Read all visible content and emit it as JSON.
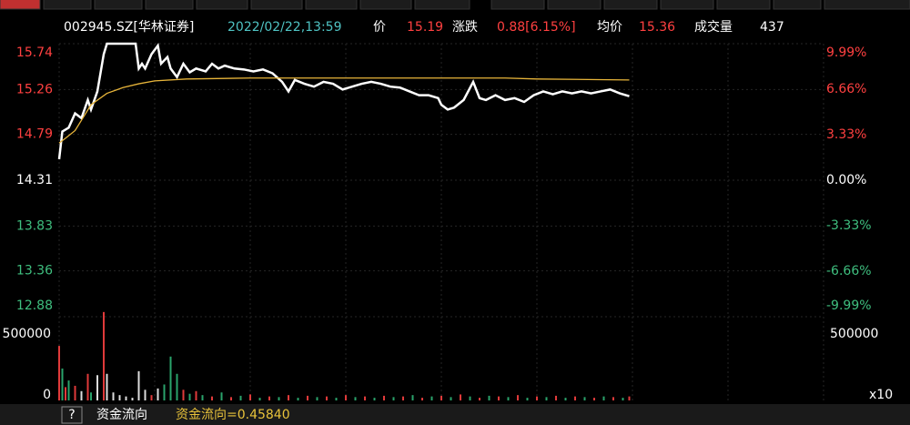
{
  "chart_data": {
    "type": "line",
    "header": {
      "code": "002945.SZ[华林证券]",
      "time": "2022/02/22,13:59",
      "price_label": "价",
      "price": "15.19",
      "change_label": "涨跌",
      "change": "0.88[6.15%]",
      "avg_label": "均价",
      "avg": "15.36",
      "vol_label": "成交量",
      "vol": "437"
    },
    "xlim": [
      0,
      240
    ],
    "xticks": [
      0,
      30,
      60,
      90,
      120,
      150,
      180,
      210,
      240
    ],
    "ylim": [
      12.88,
      15.74
    ],
    "yticks": [
      15.74,
      15.26,
      14.79,
      14.31,
      13.83,
      13.36,
      12.88
    ],
    "y2lim": [
      -9.99,
      9.99
    ],
    "y2ticks": [
      {
        "value": 9.99,
        "label": "9.99%"
      },
      {
        "value": 6.66,
        "label": "6.66%"
      },
      {
        "value": 3.33,
        "label": "3.33%"
      },
      {
        "value": 0,
        "label": "0.00%"
      },
      {
        "value": -3.33,
        "label": "-3.33%"
      },
      {
        "value": -6.66,
        "label": "-6.66%"
      },
      {
        "value": -9.99,
        "label": "-9.99%"
      }
    ],
    "series": [
      {
        "color": "#ffffff",
        "x": [
          0,
          1,
          3,
          5,
          7,
          9,
          10,
          12,
          14,
          15,
          24,
          25,
          26,
          27,
          29,
          31,
          32,
          34,
          35,
          37,
          39,
          41,
          43,
          46,
          48,
          50,
          52,
          55,
          58,
          61,
          64,
          67,
          70,
          72,
          74,
          77,
          80,
          83,
          86,
          89,
          92,
          95,
          98,
          101,
          104,
          107,
          110,
          113,
          116,
          119,
          120,
          122,
          124,
          127,
          130,
          132,
          134,
          137,
          140,
          143,
          146,
          149,
          152,
          155,
          158,
          161,
          164,
          167,
          170,
          173,
          176,
          179
        ],
        "values": [
          14.53,
          14.82,
          14.86,
          15.01,
          14.96,
          15.15,
          15.05,
          15.24,
          15.63,
          15.74,
          15.74,
          15.48,
          15.53,
          15.48,
          15.63,
          15.72,
          15.53,
          15.6,
          15.48,
          15.39,
          15.53,
          15.44,
          15.48,
          15.45,
          15.53,
          15.48,
          15.51,
          15.48,
          15.47,
          15.45,
          15.47,
          15.43,
          15.34,
          15.24,
          15.36,
          15.32,
          15.29,
          15.34,
          15.32,
          15.26,
          15.29,
          15.32,
          15.34,
          15.32,
          15.29,
          15.28,
          15.24,
          15.2,
          15.2,
          15.17,
          15.1,
          15.05,
          15.07,
          15.15,
          15.34,
          15.17,
          15.15,
          15.2,
          15.15,
          15.17,
          15.13,
          15.2,
          15.24,
          15.21,
          15.24,
          15.22,
          15.24,
          15.22,
          15.24,
          15.26,
          15.22,
          15.19
        ]
      },
      {
        "color": "#e8b53a",
        "x": [
          0,
          2,
          5,
          10,
          15,
          20,
          25,
          30,
          40,
          60,
          100,
          140,
          150,
          179
        ],
        "values": [
          14.7,
          14.75,
          14.83,
          15.1,
          15.22,
          15.28,
          15.32,
          15.35,
          15.37,
          15.38,
          15.38,
          15.38,
          15.37,
          15.36
        ]
      }
    ],
    "volume": {
      "ylim": [
        0,
        664000
      ],
      "yticks": [
        0,
        500000
      ],
      "multiplier": "x10",
      "x": [
        0,
        1,
        2,
        3,
        5,
        7,
        9,
        10,
        12,
        14,
        15,
        17,
        19,
        21,
        23,
        25,
        27,
        29,
        31,
        33,
        35,
        37,
        39,
        41,
        43,
        45,
        48,
        51,
        54,
        57,
        60,
        63,
        66,
        69,
        72,
        75,
        78,
        81,
        84,
        87,
        90,
        93,
        96,
        99,
        102,
        105,
        108,
        111,
        114,
        117,
        120,
        123,
        126,
        129,
        132,
        135,
        138,
        141,
        144,
        147,
        150,
        153,
        156,
        159,
        162,
        165,
        168,
        171,
        174,
        177,
        179
      ],
      "values": [
        410000,
        240000,
        100000,
        150000,
        110000,
        70000,
        200000,
        60000,
        190000,
        665000,
        200000,
        60000,
        40000,
        30000,
        20000,
        220000,
        80000,
        40000,
        90000,
        120000,
        330000,
        200000,
        80000,
        50000,
        70000,
        40000,
        30000,
        60000,
        25000,
        35000,
        45000,
        20000,
        30000,
        25000,
        40000,
        20000,
        35000,
        25000,
        30000,
        20000,
        40000,
        25000,
        30000,
        20000,
        35000,
        25000,
        30000,
        40000,
        20000,
        30000,
        35000,
        25000,
        45000,
        30000,
        20000,
        35000,
        30000,
        25000,
        40000,
        20000,
        30000,
        25000,
        35000,
        20000,
        30000,
        25000,
        20000,
        30000,
        25000,
        20000,
        30000
      ],
      "colors": [
        "#e03a3a",
        "#2aa36b",
        "#e03a3a",
        "#2aa36b",
        "#e03a3a",
        "#dddddd",
        "#e03a3a",
        "#2aa36b",
        "#dddddd",
        "#e03a3a",
        "#dddddd",
        "#dddddd",
        "#dddddd",
        "#dddddd",
        "#dddddd",
        "#dddddd",
        "#dddddd",
        "#e03a3a",
        "#dddddd",
        "#2aa36b",
        "#2aa36b",
        "#2aa36b",
        "#e03a3a",
        "#2aa36b",
        "#e03a3a",
        "#2aa36b",
        "#e03a3a",
        "#2aa36b",
        "#e03a3a",
        "#2aa36b",
        "#e03a3a",
        "#2aa36b",
        "#e03a3a",
        "#2aa36b",
        "#e03a3a",
        "#2aa36b",
        "#e03a3a",
        "#2aa36b",
        "#e03a3a",
        "#2aa36b",
        "#e03a3a",
        "#2aa36b",
        "#e03a3a",
        "#2aa36b",
        "#e03a3a",
        "#2aa36b",
        "#e03a3a",
        "#2aa36b",
        "#e03a3a",
        "#2aa36b",
        "#e03a3a",
        "#2aa36b",
        "#e03a3a",
        "#2aa36b",
        "#e03a3a",
        "#2aa36b",
        "#e03a3a",
        "#2aa36b",
        "#e03a3a",
        "#2aa36b",
        "#e03a3a",
        "#2aa36b",
        "#e03a3a",
        "#2aa36b",
        "#e03a3a",
        "#2aa36b",
        "#e03a3a",
        "#2aa36b",
        "#e03a3a",
        "#2aa36b",
        "#e03a3a"
      ]
    },
    "footer": {
      "help": "?",
      "label": "资金流向",
      "indicator": "资金流向=0.45840"
    }
  }
}
